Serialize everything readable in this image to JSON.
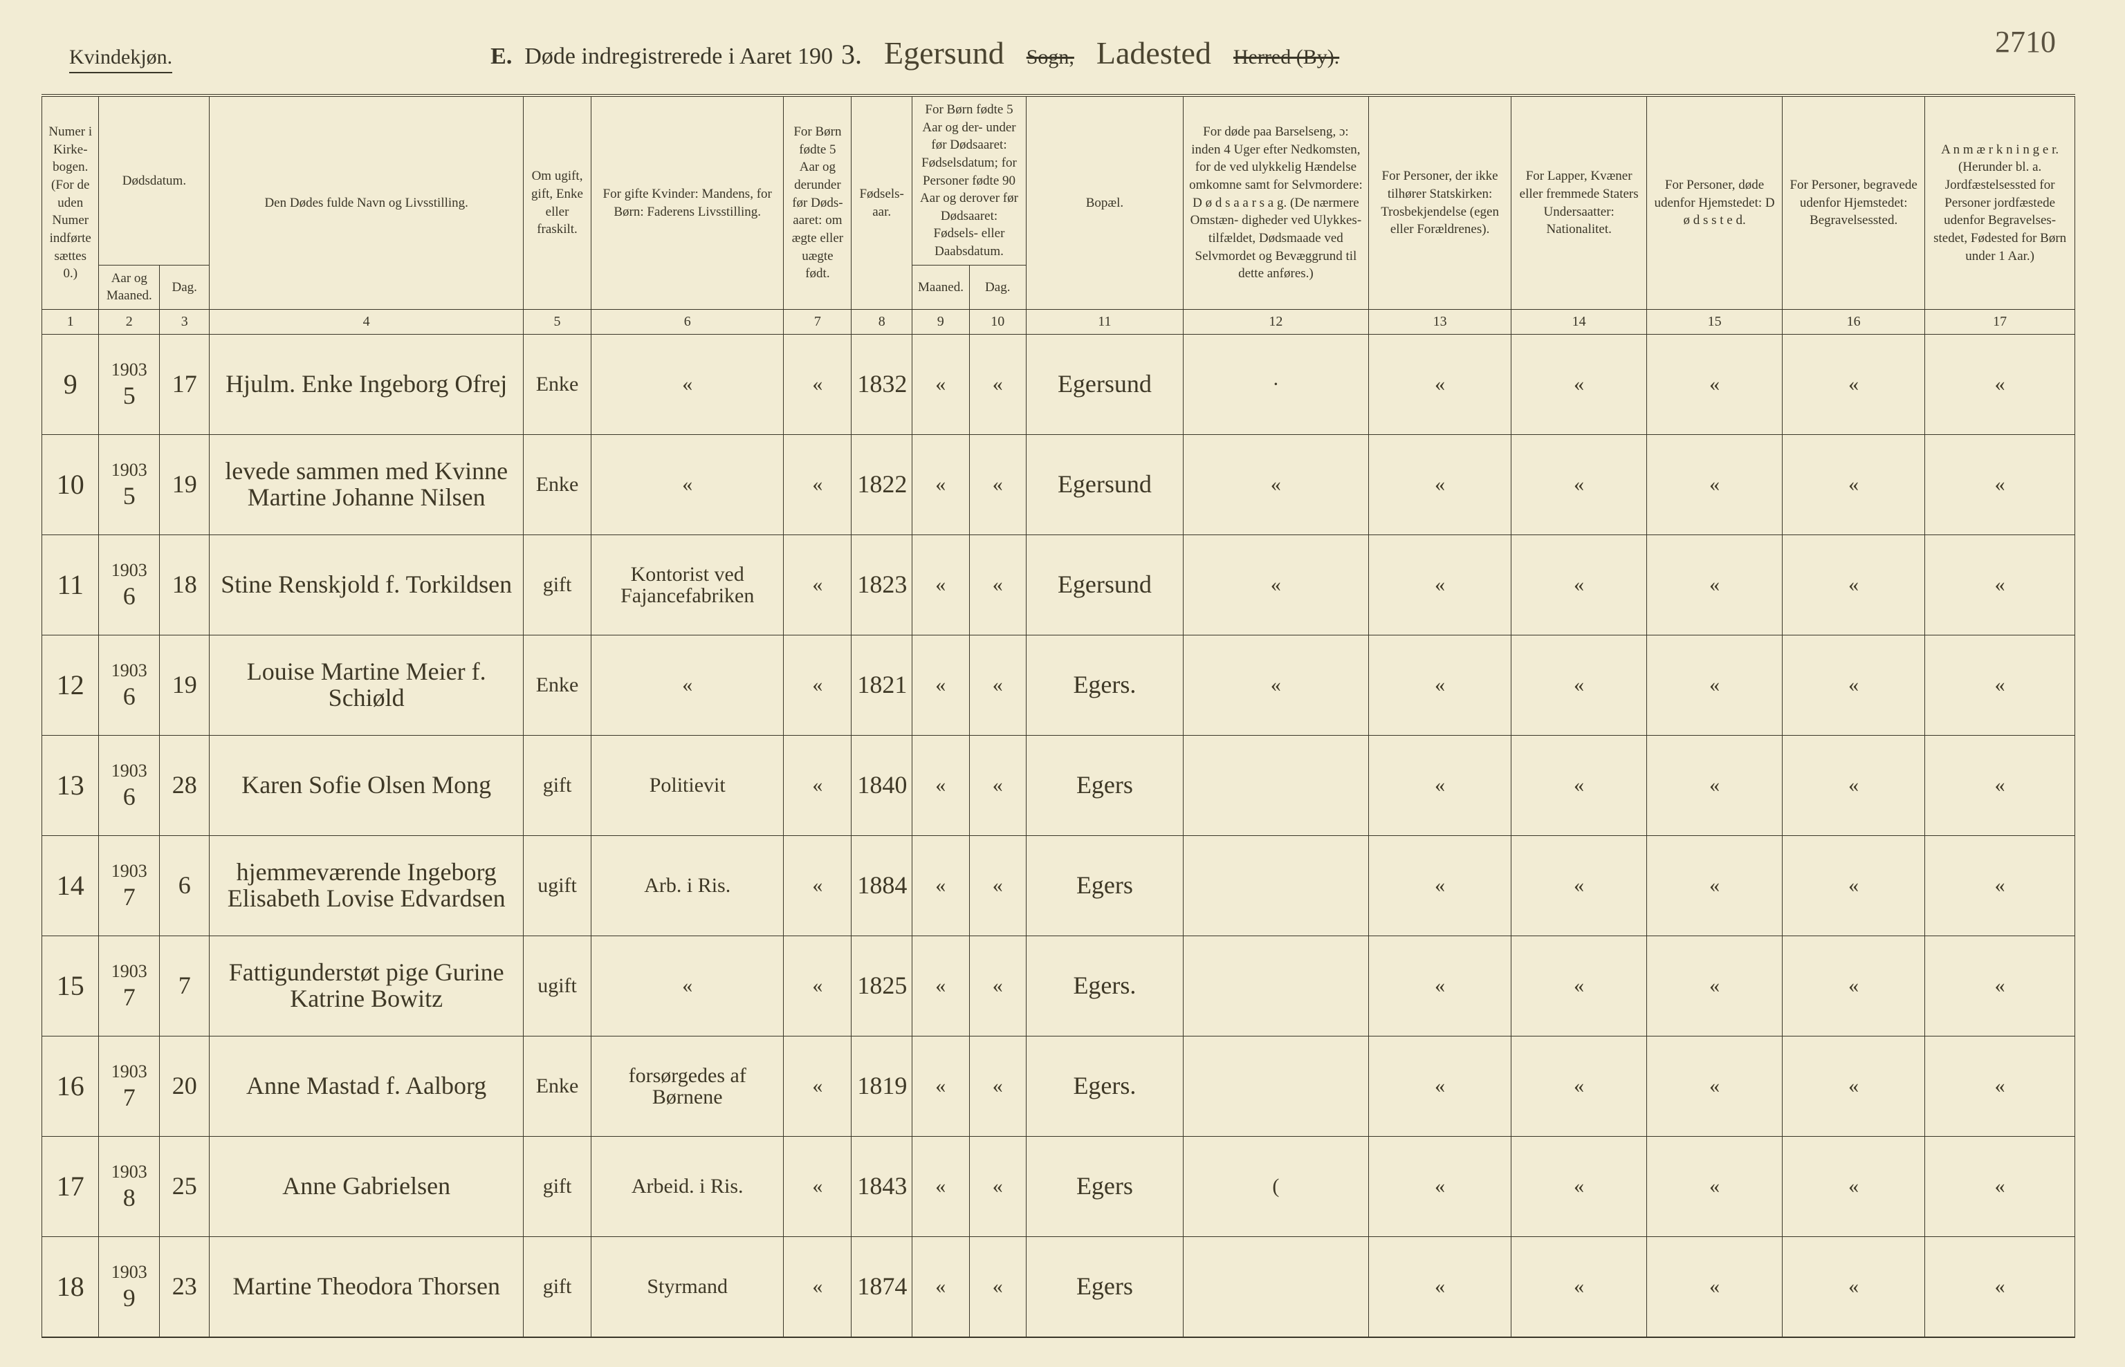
{
  "page_number_hand": "2710",
  "header": {
    "gender": "Kvindekjøn.",
    "title_prefix": "E.",
    "title_main": "Døde indregistrerede i Aaret 190",
    "title_year_suffix": "3.",
    "parish_hand": "Egersund",
    "sogn_label": "Sogn,",
    "ladested_hand": "Ladested",
    "herred_label": "Herred (By)."
  },
  "columns": {
    "c1": "Numer i Kirke- bogen. (For de uden Numer indførte sættes 0.)",
    "c2top": "Dødsdatum.",
    "c2a": "Aar og Maaned.",
    "c2b": "Dag.",
    "c4": "Den Dødes fulde Navn og Livsstilling.",
    "c5": "Om ugift, gift, Enke eller fraskilt.",
    "c6": "For gifte Kvinder: Mandens, for Børn: Faderens Livsstilling.",
    "c7": "For Børn fødte 5 Aar og derunder før Døds- aaret: om ægte eller uægte født.",
    "c8": "Fødsels- aar.",
    "c9top": "For Børn fødte 5 Aar og der- under før Dødsaaret: Fødselsdatum; for Personer fødte 90 Aar og derover før Dødsaaret: Fødsels- eller Daabsdatum.",
    "c9a": "Maaned.",
    "c9b": "Dag.",
    "c11": "Bopæl.",
    "c12": "For døde paa Barselseng, ɔ: inden 4 Uger efter Nedkomsten, for de ved ulykkelig Hændelse omkomne samt for Selvmordere: D ø d s a a r s a g. (De nærmere Omstæn- digheder ved Ulykkes- tilfældet, Dødsmaade ved Selvmordet og Bevæggrund til dette anføres.)",
    "c13": "For Personer, der ikke tilhører Statskirken: Trosbekjendelse (egen eller Forældrenes).",
    "c14": "For Lapper, Kvæner eller fremmede Staters Undersaatter: Nationalitet.",
    "c15": "For Personer, døde udenfor Hjemstedet: D ø d s s t e d.",
    "c16": "For Personer, begravede udenfor Hjemstedet: Begravelsessted.",
    "c17": "A n m æ r k n i n g e r. (Herunder bl. a. Jordfæstelsessted for Personer jordfæstede udenfor Begravelses- stedet, Fødested for Børn under 1 Aar.)"
  },
  "colnums": [
    "1",
    "2",
    "3",
    "4",
    "5",
    "6",
    "7",
    "8",
    "9",
    "10",
    "11",
    "12",
    "13",
    "14",
    "15",
    "16",
    "17"
  ],
  "rows": [
    {
      "num": "9",
      "year": "1903",
      "month": "5",
      "day": "17",
      "name": "Hjulm. Enke Ingeborg Ofrej",
      "status": "Enke",
      "father": "«",
      "under5": "«",
      "birth": "1832",
      "bm": "«",
      "bd": "«",
      "residence": "Egersund",
      "cause": "·",
      "c13": "«",
      "c14": "«",
      "c15": "«",
      "c16": "«",
      "c17": "«"
    },
    {
      "num": "10",
      "year": "1903",
      "month": "5",
      "day": "19",
      "name": "levede sammen med Kvinne Martine Johanne Nilsen",
      "status": "Enke",
      "father": "«",
      "under5": "«",
      "birth": "1822",
      "bm": "«",
      "bd": "«",
      "residence": "Egersund",
      "cause": "«",
      "c13": "«",
      "c14": "«",
      "c15": "«",
      "c16": "«",
      "c17": "«"
    },
    {
      "num": "11",
      "year": "1903",
      "month": "6",
      "day": "18",
      "name": "Stine Renskjold f. Torkildsen",
      "status": "gift",
      "father": "Kontorist ved Fajancefabriken",
      "under5": "«",
      "birth": "1823",
      "bm": "«",
      "bd": "«",
      "residence": "Egersund",
      "cause": "«",
      "c13": "«",
      "c14": "«",
      "c15": "«",
      "c16": "«",
      "c17": "«"
    },
    {
      "num": "12",
      "year": "1903",
      "month": "6",
      "day": "19",
      "name": "Louise Martine Meier f. Schiøld",
      "status": "Enke",
      "father": "«",
      "under5": "«",
      "birth": "1821",
      "bm": "«",
      "bd": "«",
      "residence": "Egers.",
      "cause": "«",
      "c13": "«",
      "c14": "«",
      "c15": "«",
      "c16": "«",
      "c17": "«"
    },
    {
      "num": "13",
      "year": "1903",
      "month": "6",
      "day": "28",
      "name": "Karen Sofie Olsen Mong",
      "status": "gift",
      "father": "Politievit",
      "under5": "«",
      "birth": "1840",
      "bm": "«",
      "bd": "«",
      "residence": "Egers",
      "cause": "",
      "c13": "«",
      "c14": "«",
      "c15": "«",
      "c16": "«",
      "c17": "«"
    },
    {
      "num": "14",
      "year": "1903",
      "month": "7",
      "day": "6",
      "name": "hjemmeværende Ingeborg Elisabeth Lovise Edvardsen",
      "status": "ugift",
      "father": "Arb. i Ris.",
      "under5": "«",
      "birth": "1884",
      "bm": "«",
      "bd": "«",
      "residence": "Egers",
      "cause": "",
      "c13": "«",
      "c14": "«",
      "c15": "«",
      "c16": "«",
      "c17": "«"
    },
    {
      "num": "15",
      "year": "1903",
      "month": "7",
      "day": "7",
      "name": "Fattigunderstøt pige Gurine Katrine Bowitz",
      "status": "ugift",
      "father": "«",
      "under5": "«",
      "birth": "1825",
      "bm": "«",
      "bd": "«",
      "residence": "Egers.",
      "cause": "",
      "c13": "«",
      "c14": "«",
      "c15": "«",
      "c16": "«",
      "c17": "«"
    },
    {
      "num": "16",
      "year": "1903",
      "month": "7",
      "day": "20",
      "name": "Anne Mastad f. Aalborg",
      "status": "Enke",
      "father": "forsørgedes af Børnene",
      "under5": "«",
      "birth": "1819",
      "bm": "«",
      "bd": "«",
      "residence": "Egers.",
      "cause": "",
      "c13": "«",
      "c14": "«",
      "c15": "«",
      "c16": "«",
      "c17": "«"
    },
    {
      "num": "17",
      "year": "1903",
      "month": "8",
      "day": "25",
      "name": "Anne Gabrielsen",
      "status": "gift",
      "father": "Arbeid. i Ris.",
      "under5": "«",
      "birth": "1843",
      "bm": "«",
      "bd": "«",
      "residence": "Egers",
      "cause": "(",
      "c13": "«",
      "c14": "«",
      "c15": "«",
      "c16": "«",
      "c17": "«"
    },
    {
      "num": "18",
      "year": "1903",
      "month": "9",
      "day": "23",
      "name": "Martine Theodora Thorsen",
      "status": "gift",
      "father": "Styrmand",
      "under5": "«",
      "birth": "1874",
      "bm": "«",
      "bd": "«",
      "residence": "Egers",
      "cause": "",
      "c13": "«",
      "c14": "«",
      "c15": "«",
      "c16": "«",
      "c17": "«"
    }
  ]
}
